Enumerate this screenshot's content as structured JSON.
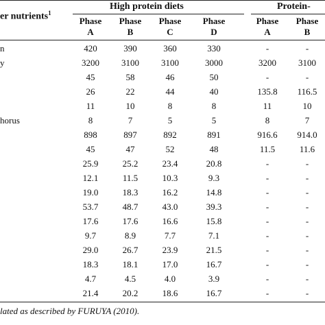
{
  "header": {
    "col0_title": "er nutrients",
    "col0_sup": "1",
    "group_high": "High protein diets",
    "group_low": "Protein-"
  },
  "phases": [
    {
      "word": "Phase",
      "letter": "A"
    },
    {
      "word": "Phase",
      "letter": "B"
    },
    {
      "word": "Phase",
      "letter": "C"
    },
    {
      "word": "Phase",
      "letter": "D"
    },
    {
      "word": "Phase",
      "letter": "A"
    },
    {
      "word": "Phase",
      "letter": "B"
    }
  ],
  "rows": [
    {
      "label": "n",
      "values": [
        "420",
        "390",
        "360",
        "330",
        "-",
        "-"
      ]
    },
    {
      "label": "y",
      "values": [
        "3200",
        "3100",
        "3100",
        "3000",
        "3200",
        "3100"
      ]
    },
    {
      "label": "",
      "values": [
        "45",
        "58",
        "46",
        "50",
        "-",
        "-"
      ]
    },
    {
      "label": "",
      "values": [
        "26",
        "22",
        "44",
        "40",
        "135.8",
        "116.5"
      ]
    },
    {
      "label": "",
      "values": [
        "11",
        "10",
        "8",
        "8",
        "11",
        "10"
      ]
    },
    {
      "label": "horus",
      "values": [
        "8",
        "7",
        "5",
        "5",
        "8",
        "7"
      ]
    },
    {
      "label": "",
      "values": [
        "898",
        "897",
        "892",
        "891",
        "916.6",
        "914.0"
      ]
    },
    {
      "label": "",
      "values": [
        "45",
        "47",
        "52",
        "48",
        "11.5",
        "11.6"
      ]
    },
    {
      "label": "",
      "values": [
        "25.9",
        "25.2",
        "23.4",
        "20.8",
        "-",
        "-"
      ]
    },
    {
      "label": "",
      "values": [
        "12.1",
        "11.5",
        "10.3",
        "9.3",
        "-",
        "-"
      ]
    },
    {
      "label": "",
      "values": [
        "19.0",
        "18.3",
        "16.2",
        "14.8",
        "-",
        "-"
      ]
    },
    {
      "label": "",
      "values": [
        "53.7",
        "48.7",
        "43.0",
        "39.3",
        "-",
        "-"
      ]
    },
    {
      "label": "",
      "values": [
        "17.6",
        "17.6",
        "16.6",
        "15.8",
        "-",
        "-"
      ]
    },
    {
      "label": "",
      "values": [
        "9.7",
        "8.9",
        "7.7",
        "7.1",
        "-",
        "-"
      ]
    },
    {
      "label": "",
      "values": [
        "29.0",
        "26.7",
        "23.9",
        "21.5",
        "-",
        "-"
      ]
    },
    {
      "label": "",
      "values": [
        "18.3",
        "18.1",
        "17.0",
        "16.7",
        "-",
        "-"
      ]
    },
    {
      "label": "",
      "values": [
        "4.7",
        "4.5",
        "4.0",
        "3.9",
        "-",
        "-"
      ]
    },
    {
      "label": "",
      "values": [
        "21.4",
        "20.2",
        "18.6",
        "16.7",
        "-",
        "-"
      ]
    }
  ],
  "footnote": "lated as described by FURUYA (2010)."
}
